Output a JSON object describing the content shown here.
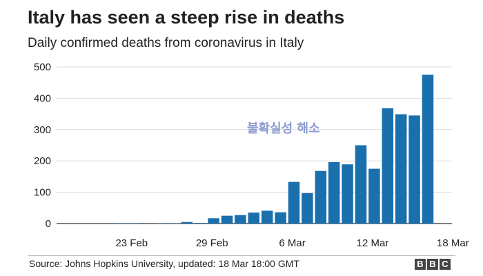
{
  "header": {
    "title": "Italy has seen a steep rise in deaths",
    "subtitle": "Daily confirmed deaths from coronavirus in Italy"
  },
  "overlay": {
    "text": "불확실성 해소"
  },
  "footer": {
    "source": "Source: Johns Hopkins University, updated:  18 Mar 18:00 GMT",
    "logo_letters": [
      "B",
      "B",
      "C"
    ]
  },
  "colors": {
    "bar": "#1a6fad",
    "grid": "#d9d9d9",
    "baseline": "#333333",
    "text": "#222222"
  },
  "chart_data": {
    "type": "bar",
    "title": "Italy has seen a steep rise in deaths",
    "subtitle": "Daily confirmed deaths from coronavirus in Italy",
    "xlabel": "",
    "ylabel": "",
    "ylim": [
      0,
      500
    ],
    "yticks": [
      0,
      100,
      200,
      300,
      400,
      500
    ],
    "grid": true,
    "categories": [
      "21 Feb",
      "22 Feb",
      "23 Feb",
      "24 Feb",
      "25 Feb",
      "26 Feb",
      "27 Feb",
      "28 Feb",
      "29 Feb",
      "1 Mar",
      "2 Mar",
      "3 Mar",
      "4 Mar",
      "5 Mar",
      "6 Mar",
      "7 Mar",
      "8 Mar",
      "9 Mar",
      "10 Mar",
      "11 Mar",
      "12 Mar",
      "13 Mar",
      "14 Mar",
      "15 Mar",
      "16 Mar",
      "17 Mar",
      "18 Mar"
    ],
    "values": [
      0,
      0,
      1,
      1,
      0,
      1,
      1,
      5,
      2,
      17,
      25,
      27,
      35,
      41,
      36,
      133,
      97,
      168,
      196,
      189,
      250,
      175,
      368,
      349,
      345,
      475,
      0
    ],
    "x_tick_labels": [
      {
        "label": "23 Feb",
        "index": 2
      },
      {
        "label": "29 Feb",
        "index": 8
      },
      {
        "label": "6 Mar",
        "index": 14
      },
      {
        "label": "12 Mar",
        "index": 20
      },
      {
        "label": "18 Mar",
        "index": 26
      }
    ]
  }
}
